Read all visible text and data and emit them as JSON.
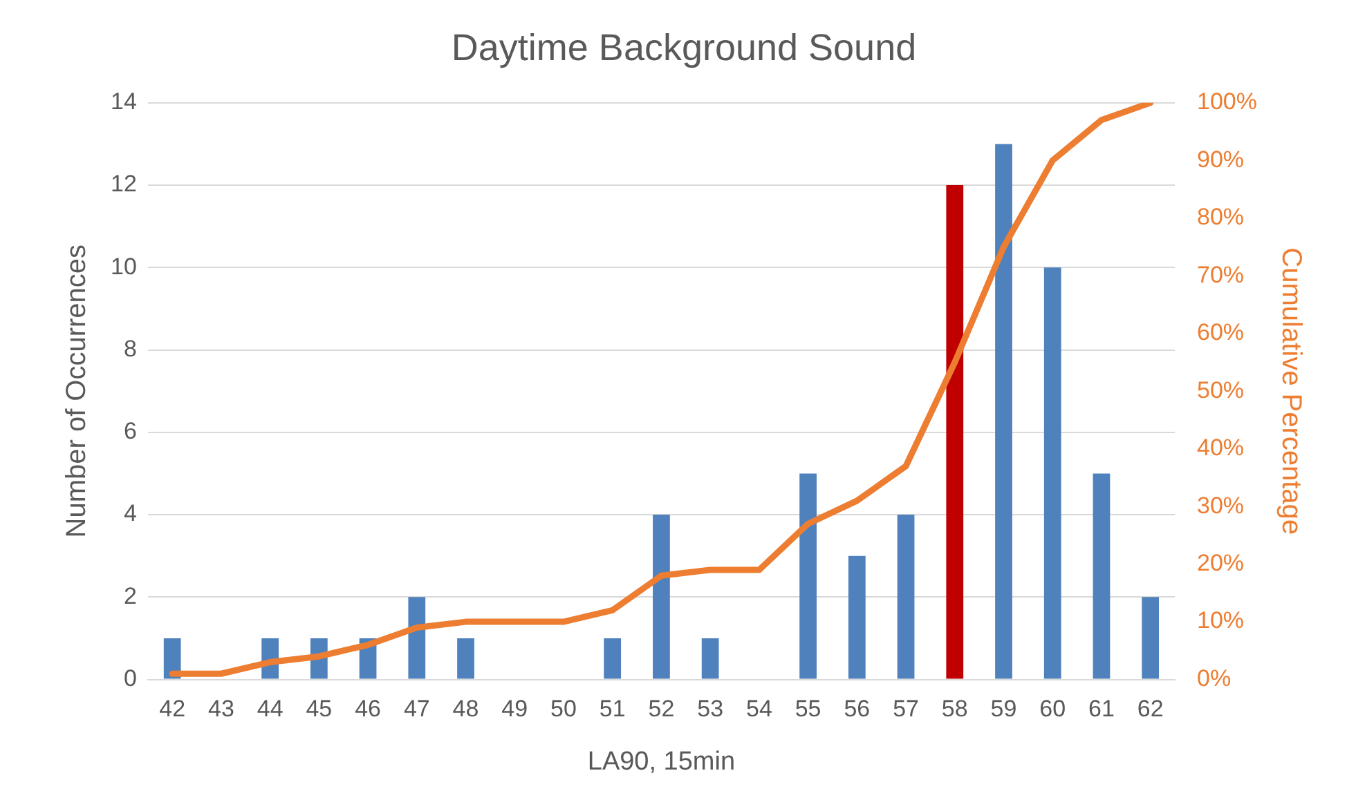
{
  "chart_data": {
    "type": "bar",
    "title": "Daytime Background Sound",
    "xlabel": "LA90, 15min",
    "ylabel": "Number of Occurrences",
    "y2label": "Cumulative Percentage",
    "categories": [
      "42",
      "43",
      "44",
      "45",
      "46",
      "47",
      "48",
      "49",
      "50",
      "51",
      "52",
      "53",
      "54",
      "55",
      "56",
      "57",
      "58",
      "59",
      "60",
      "61",
      "62"
    ],
    "series": [
      {
        "colors": [
          "#4f81bd",
          "#4f81bd",
          "#4f81bd",
          "#4f81bd",
          "#4f81bd",
          "#4f81bd",
          "#4f81bd",
          "#4f81bd",
          "#4f81bd",
          "#4f81bd",
          "#4f81bd",
          "#4f81bd",
          "#4f81bd",
          "#4f81bd",
          "#4f81bd",
          "#4f81bd",
          "#c00000",
          "#4f81bd",
          "#4f81bd",
          "#4f81bd",
          "#4f81bd"
        ],
        "values": [
          1,
          0,
          1,
          1,
          1,
          2,
          1,
          0,
          0,
          1,
          4,
          1,
          0,
          5,
          3,
          4,
          12,
          13,
          10,
          5,
          2
        ]
      },
      {
        "type": "line",
        "axis": "y2",
        "color": "#ed7d31",
        "values": [
          1,
          1,
          3,
          4,
          6,
          9,
          10,
          10,
          10,
          12,
          18,
          19,
          19,
          27,
          31,
          37,
          55,
          75,
          90,
          97,
          100
        ]
      }
    ],
    "ylim": [
      0,
      14
    ],
    "yticks": [
      0,
      2,
      4,
      6,
      8,
      10,
      12,
      14
    ],
    "y2lim": [
      0,
      100
    ],
    "y2ticks": [
      {
        "value": 0,
        "label": "0%"
      },
      {
        "value": 10,
        "label": "10%"
      },
      {
        "value": 20,
        "label": "20%"
      },
      {
        "value": 30,
        "label": "30%"
      },
      {
        "value": 40,
        "label": "40%"
      },
      {
        "value": 50,
        "label": "50%"
      },
      {
        "value": 60,
        "label": "60%"
      },
      {
        "value": 70,
        "label": "70%"
      },
      {
        "value": 80,
        "label": "80%"
      },
      {
        "value": 90,
        "label": "90%"
      },
      {
        "value": 100,
        "label": "100%"
      }
    ],
    "grid": "y",
    "legend": false,
    "marker": "none",
    "line_style": "solid"
  }
}
